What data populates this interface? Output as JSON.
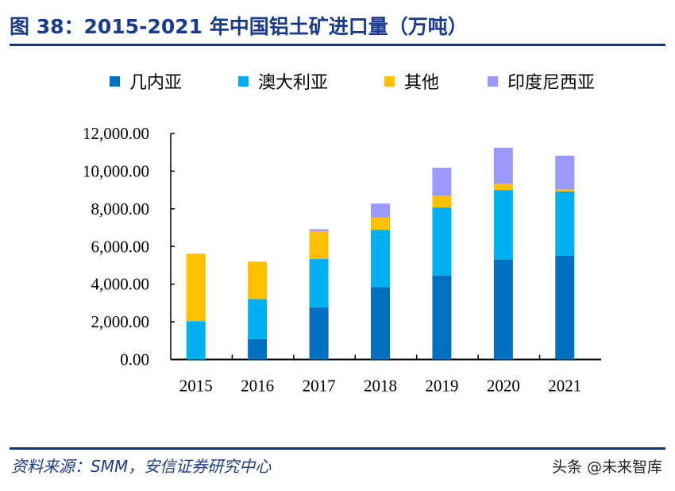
{
  "title": "图 38：2015-2021 年中国铝土矿进口量（万吨）",
  "source": "资料来源：SMM，安信证券研究中心",
  "watermark": "头条 @未来智库",
  "chart_data": {
    "type": "bar",
    "stacked": true,
    "title": "图 38：2015-2021 年中国铝土矿进口量（万吨）",
    "categories": [
      "2015",
      "2016",
      "2017",
      "2018",
      "2019",
      "2020",
      "2021"
    ],
    "series": [
      {
        "name": "几内亚",
        "color": "#0070c0",
        "values": [
          0,
          1080,
          2770,
          3850,
          4460,
          5310,
          5520
        ]
      },
      {
        "name": "澳大利亚",
        "color": "#00b0f0",
        "values": [
          2040,
          2130,
          2570,
          3040,
          3610,
          3690,
          3400
        ]
      },
      {
        "name": "其他",
        "color": "#ffc000",
        "values": [
          3580,
          1990,
          1480,
          660,
          630,
          340,
          110
        ]
      },
      {
        "name": "印度尼西亚",
        "color": "#9999ff",
        "values": [
          0,
          0,
          100,
          730,
          1480,
          1900,
          1790
        ]
      }
    ],
    "yticks": [
      "0.00",
      "2,000.00",
      "4,000.00",
      "6,000.00",
      "8,000.00",
      "10,000.00",
      "12,000.00"
    ],
    "ylim": [
      0,
      12000
    ],
    "grid": false,
    "legend": "top"
  }
}
